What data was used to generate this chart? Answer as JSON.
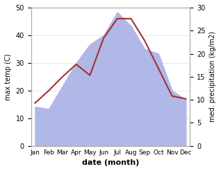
{
  "months": [
    "Jan",
    "Feb",
    "Mar",
    "Apr",
    "May",
    "Jun",
    "Jul",
    "Aug",
    "Sep",
    "Oct",
    "Nov",
    "Dec"
  ],
  "temp": [
    15.5,
    20,
    25,
    29.5,
    25.5,
    39,
    46,
    46,
    38,
    28,
    18,
    17
  ],
  "precip": [
    8.5,
    8,
    13,
    18,
    22,
    24,
    29,
    26,
    21,
    20,
    12,
    10
  ],
  "temp_color": "#a03030",
  "precip_color": "#b0b8e8",
  "precip_edge_color": "#8090d0",
  "ylim_left": [
    0,
    50
  ],
  "ylim_right": [
    0,
    30
  ],
  "ylabel_left": "max temp (C)",
  "ylabel_right": "med. precipitation (kg/m2)",
  "xlabel": "date (month)",
  "bg_color": "#f5f5f5",
  "spine_color": "#aaaaaa"
}
